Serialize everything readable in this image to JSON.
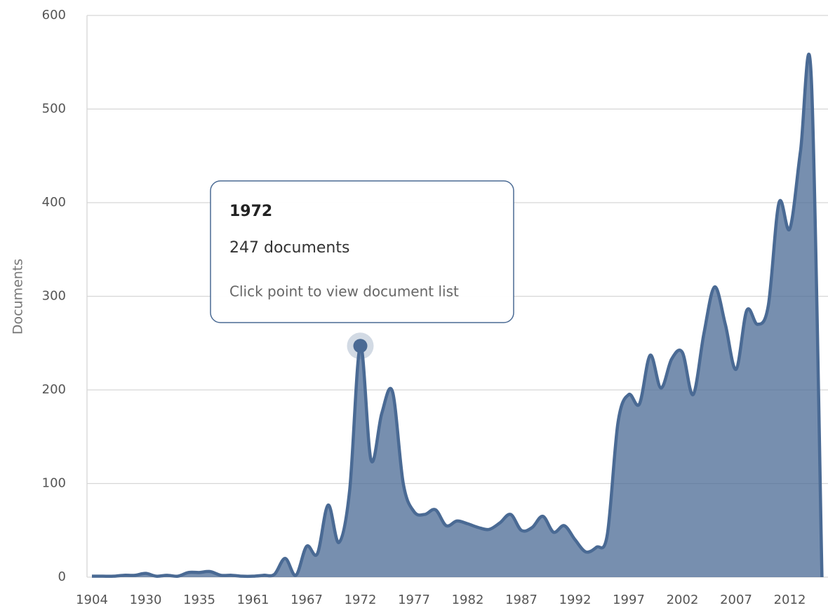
{
  "chart_data": {
    "type": "areaspline",
    "y_axis_label": "Documents",
    "categories": [
      "1904",
      null,
      null,
      null,
      null,
      "1930",
      null,
      null,
      null,
      null,
      "1935",
      null,
      null,
      null,
      null,
      "1961",
      null,
      null,
      null,
      null,
      "1967",
      null,
      null,
      null,
      null,
      "1972",
      null,
      null,
      null,
      null,
      "1977",
      null,
      null,
      null,
      null,
      "1982",
      null,
      null,
      null,
      null,
      "1987",
      null,
      null,
      null,
      null,
      "1992",
      null,
      null,
      null,
      null,
      "1997",
      null,
      null,
      null,
      null,
      "2002",
      null,
      null,
      null,
      null,
      "2007",
      null,
      null,
      null,
      null,
      "2012",
      null,
      null,
      null
    ],
    "values": [
      1,
      1,
      1,
      2,
      2,
      4,
      1,
      2,
      1,
      5,
      5,
      6,
      2,
      2,
      1,
      1,
      2,
      3,
      20,
      2,
      33,
      25,
      77,
      37,
      92,
      247,
      125,
      175,
      198,
      100,
      70,
      67,
      72,
      55,
      60,
      57,
      53,
      51,
      58,
      67,
      50,
      53,
      65,
      48,
      55,
      40,
      27,
      32,
      45,
      165,
      195,
      185,
      237,
      202,
      233,
      240,
      195,
      260,
      310,
      270,
      222,
      285,
      270,
      290,
      400,
      372,
      455,
      535,
      0
    ],
    "color": "#4a6a94",
    "ylim": [
      0,
      600
    ],
    "yticks": [
      0,
      100,
      200,
      300,
      400,
      500,
      600
    ],
    "grid": true,
    "highlight_index": 25,
    "tooltip": {
      "title": "1972",
      "body": "247 documents",
      "note": "Click point to view document list"
    }
  }
}
